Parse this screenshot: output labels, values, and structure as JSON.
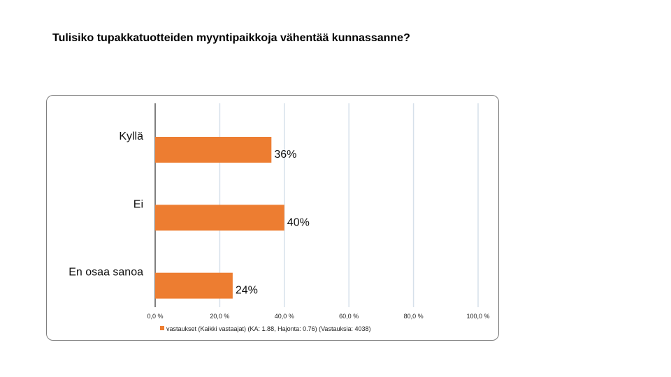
{
  "title": "Tulisiko tupakkatuotteiden myyntipaikkoja vähentää kunnassanne?",
  "colors": {
    "bar": "#ED7D31",
    "grid": "#D6E0EA",
    "axis": "#808080"
  },
  "chart_data": {
    "type": "bar",
    "orientation": "horizontal",
    "categories": [
      "Kyllä",
      "Ei",
      "En osaa sanoa"
    ],
    "series": [
      {
        "name": "vastaukset (Kaikki vastaajat) (KA: 1.88, Hajonta: 0.76) (Vastauksia: 4038)",
        "values": [
          36,
          40,
          24
        ],
        "labels": [
          "36%",
          "40%",
          "24%"
        ]
      }
    ],
    "xlim": [
      0,
      100
    ],
    "xticks": [
      0,
      20,
      40,
      60,
      80,
      100
    ],
    "xtick_labels": [
      "0,0 %",
      "20,0 %",
      "40,0 %",
      "60,0 %",
      "80,0 %",
      "100,0 %"
    ],
    "grid": true,
    "legend_position": "bottom"
  }
}
